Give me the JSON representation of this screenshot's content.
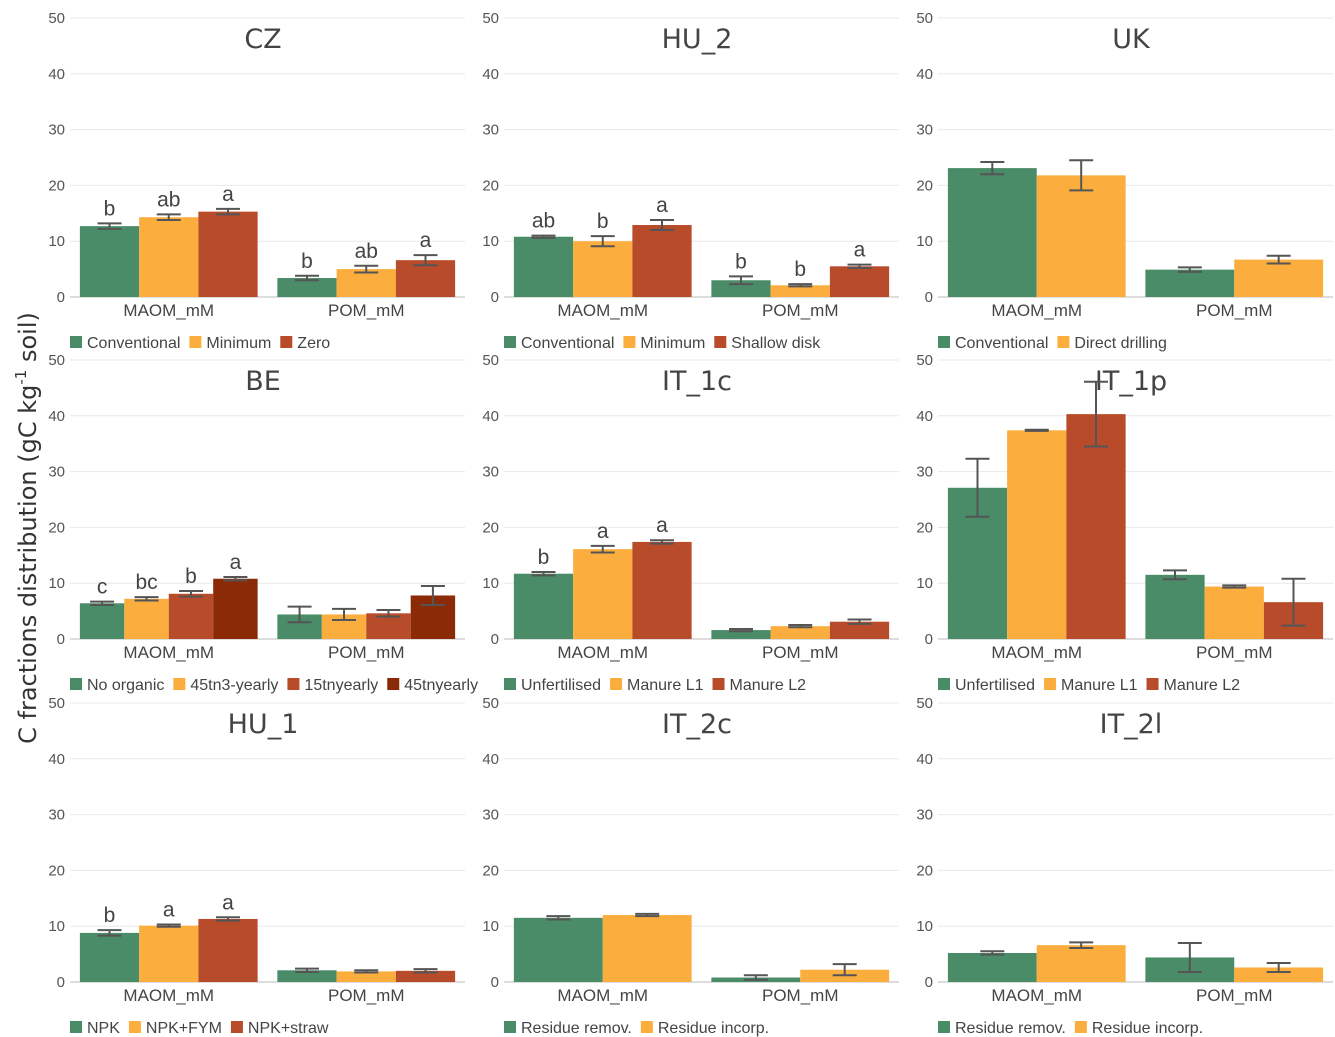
{
  "y_axis_label": {
    "prefix": "C fractions distribution (gC kg",
    "superscript": "-1",
    "suffix": " soil)"
  },
  "colors": {
    "green": "#4a8b68",
    "orange": "#fbae3e",
    "red": "#b74b2a",
    "darkred": "#8a2a06",
    "error_bar": "#555555",
    "grid": "#e8e8e8",
    "axis_line": "#bbbbbb"
  },
  "chart_data": [
    {
      "type": "bar",
      "title": "CZ",
      "ylim": [
        0,
        50
      ],
      "ticks": [
        0,
        10,
        20,
        30,
        40,
        50
      ],
      "grid": true,
      "categories": [
        "MAOM_mM",
        "POM_mM"
      ],
      "series": [
        {
          "name": "Conventional",
          "color": "#4a8b68",
          "values": [
            12.7,
            3.4
          ],
          "errors": [
            0.5,
            0.4
          ],
          "letters": [
            "b",
            "b"
          ]
        },
        {
          "name": "Minimum",
          "color": "#fbae3e",
          "values": [
            14.3,
            5.0
          ],
          "errors": [
            0.5,
            0.6
          ],
          "letters": [
            "ab",
            "ab"
          ]
        },
        {
          "name": "Zero",
          "color": "#b74b2a",
          "values": [
            15.3,
            6.6
          ],
          "errors": [
            0.5,
            0.9
          ],
          "letters": [
            "a",
            "a"
          ]
        }
      ],
      "legend_position": "bottom-left"
    },
    {
      "type": "bar",
      "title": "HU_2",
      "ylim": [
        0,
        50
      ],
      "ticks": [
        0,
        10,
        20,
        30,
        40,
        50
      ],
      "grid": true,
      "categories": [
        "MAOM_mM",
        "POM_mM"
      ],
      "series": [
        {
          "name": "Conventional",
          "color": "#4a8b68",
          "values": [
            10.8,
            3.0
          ],
          "errors": [
            0.2,
            0.7
          ],
          "letters": [
            "ab",
            "b"
          ]
        },
        {
          "name": "Minimum",
          "color": "#fbae3e",
          "values": [
            10.0,
            2.1
          ],
          "errors": [
            0.9,
            0.2
          ],
          "letters": [
            "b",
            "b"
          ]
        },
        {
          "name": "Shallow disk",
          "color": "#b74b2a",
          "values": [
            12.9,
            5.5
          ],
          "errors": [
            0.9,
            0.3
          ],
          "letters": [
            "a",
            "a"
          ]
        }
      ],
      "legend_position": "bottom-left"
    },
    {
      "type": "bar",
      "title": "UK",
      "ylim": [
        0,
        50
      ],
      "ticks": [
        0,
        10,
        20,
        30,
        40,
        50
      ],
      "grid": true,
      "categories": [
        "MAOM_mM",
        "POM_mM"
      ],
      "series": [
        {
          "name": "Conventional",
          "color": "#4a8b68",
          "values": [
            23.1,
            4.9
          ],
          "errors": [
            1.1,
            0.4
          ],
          "letters": [
            "",
            ""
          ]
        },
        {
          "name": "Direct drilling",
          "color": "#fbae3e",
          "values": [
            21.8,
            6.7
          ],
          "errors": [
            2.7,
            0.7
          ],
          "letters": [
            "",
            ""
          ]
        }
      ],
      "legend_position": "bottom-left"
    },
    {
      "type": "bar",
      "title": "BE",
      "ylim": [
        0,
        50
      ],
      "ticks": [
        0,
        10,
        20,
        30,
        40,
        50
      ],
      "grid": true,
      "categories": [
        "MAOM_mM",
        "POM_mM"
      ],
      "series": [
        {
          "name": "No organic",
          "color": "#4a8b68",
          "values": [
            6.4,
            4.4
          ],
          "errors": [
            0.3,
            1.4
          ],
          "letters": [
            "c",
            ""
          ]
        },
        {
          "name": "45tn3-yearly",
          "color": "#fbae3e",
          "values": [
            7.2,
            4.4
          ],
          "errors": [
            0.3,
            1.0
          ],
          "letters": [
            "bc",
            ""
          ]
        },
        {
          "name": "15tnyearly",
          "color": "#b74b2a",
          "values": [
            8.1,
            4.6
          ],
          "errors": [
            0.5,
            0.6
          ],
          "letters": [
            "b",
            ""
          ]
        },
        {
          "name": "45tnyearly",
          "color": "#8a2a06",
          "values": [
            10.8,
            7.8
          ],
          "errors": [
            0.3,
            1.7
          ],
          "letters": [
            "a",
            ""
          ]
        }
      ],
      "legend_position": "bottom-left"
    },
    {
      "type": "bar",
      "title": "IT_1c",
      "ylim": [
        0,
        50
      ],
      "ticks": [
        0,
        10,
        20,
        30,
        40,
        50
      ],
      "grid": true,
      "categories": [
        "MAOM_mM",
        "POM_mM"
      ],
      "series": [
        {
          "name": "Unfertilised",
          "color": "#4a8b68",
          "values": [
            11.7,
            1.6
          ],
          "errors": [
            0.3,
            0.2
          ],
          "letters": [
            "b",
            ""
          ]
        },
        {
          "name": "Manure L1",
          "color": "#fbae3e",
          "values": [
            16.1,
            2.3
          ],
          "errors": [
            0.6,
            0.2
          ],
          "letters": [
            "a",
            ""
          ]
        },
        {
          "name": "Manure L2",
          "color": "#b74b2a",
          "values": [
            17.4,
            3.1
          ],
          "errors": [
            0.3,
            0.4
          ],
          "letters": [
            "a",
            ""
          ]
        }
      ],
      "legend_position": "bottom-left"
    },
    {
      "type": "bar",
      "title": "IT_1p",
      "ylim": [
        0,
        50
      ],
      "ticks": [
        0,
        10,
        20,
        30,
        40,
        50
      ],
      "grid": true,
      "categories": [
        "MAOM_mM",
        "POM_mM"
      ],
      "series": [
        {
          "name": "Unfertilised",
          "color": "#4a8b68",
          "values": [
            27.1,
            11.5
          ],
          "errors": [
            5.2,
            0.8
          ],
          "letters": [
            "",
            ""
          ]
        },
        {
          "name": "Manure L1",
          "color": "#fbae3e",
          "values": [
            37.4,
            9.4
          ],
          "errors": [
            0.1,
            0.2
          ],
          "letters": [
            "",
            ""
          ]
        },
        {
          "name": "Manure L2",
          "color": "#b74b2a",
          "values": [
            40.3,
            6.6
          ],
          "errors": [
            5.8,
            4.2
          ],
          "letters": [
            "",
            ""
          ]
        }
      ],
      "legend_position": "bottom-left"
    },
    {
      "type": "bar",
      "title": "HU_1",
      "ylim": [
        0,
        50
      ],
      "ticks": [
        0,
        10,
        20,
        30,
        40,
        50
      ],
      "grid": true,
      "categories": [
        "MAOM_mM",
        "POM_mM"
      ],
      "series": [
        {
          "name": "NPK",
          "color": "#4a8b68",
          "values": [
            8.8,
            2.1
          ],
          "errors": [
            0.5,
            0.3
          ],
          "letters": [
            "b",
            ""
          ]
        },
        {
          "name": "NPK+FYM",
          "color": "#fbae3e",
          "values": [
            10.1,
            1.9
          ],
          "errors": [
            0.2,
            0.2
          ],
          "letters": [
            "a",
            ""
          ]
        },
        {
          "name": "NPK+straw",
          "color": "#b74b2a",
          "values": [
            11.3,
            2.0
          ],
          "errors": [
            0.3,
            0.3
          ],
          "letters": [
            "a",
            ""
          ]
        }
      ],
      "legend_position": "bottom-left"
    },
    {
      "type": "bar",
      "title": "IT_2c",
      "ylim": [
        0,
        50
      ],
      "ticks": [
        0,
        10,
        20,
        30,
        40,
        50
      ],
      "grid": true,
      "categories": [
        "MAOM_mM",
        "POM_mM"
      ],
      "series": [
        {
          "name": "Residue remov.",
          "color": "#4a8b68",
          "values": [
            11.5,
            0.8
          ],
          "errors": [
            0.3,
            0.4
          ],
          "letters": [
            "",
            ""
          ]
        },
        {
          "name": "Residue incorp.",
          "color": "#fbae3e",
          "values": [
            12.0,
            2.2
          ],
          "errors": [
            0.2,
            1.0
          ],
          "letters": [
            "",
            ""
          ]
        }
      ],
      "legend_position": "bottom-left"
    },
    {
      "type": "bar",
      "title": "IT_2l",
      "ylim": [
        0,
        50
      ],
      "ticks": [
        0,
        10,
        20,
        30,
        40,
        50
      ],
      "grid": true,
      "categories": [
        "MAOM_mM",
        "POM_mM"
      ],
      "series": [
        {
          "name": "Residue remov.",
          "color": "#4a8b68",
          "values": [
            5.2,
            4.4
          ],
          "errors": [
            0.3,
            2.6
          ],
          "letters": [
            "",
            ""
          ]
        },
        {
          "name": "Residue incorp.",
          "color": "#fbae3e",
          "values": [
            6.6,
            2.6
          ],
          "errors": [
            0.5,
            0.8
          ],
          "letters": [
            "",
            ""
          ]
        }
      ],
      "legend_position": "bottom-left"
    }
  ]
}
